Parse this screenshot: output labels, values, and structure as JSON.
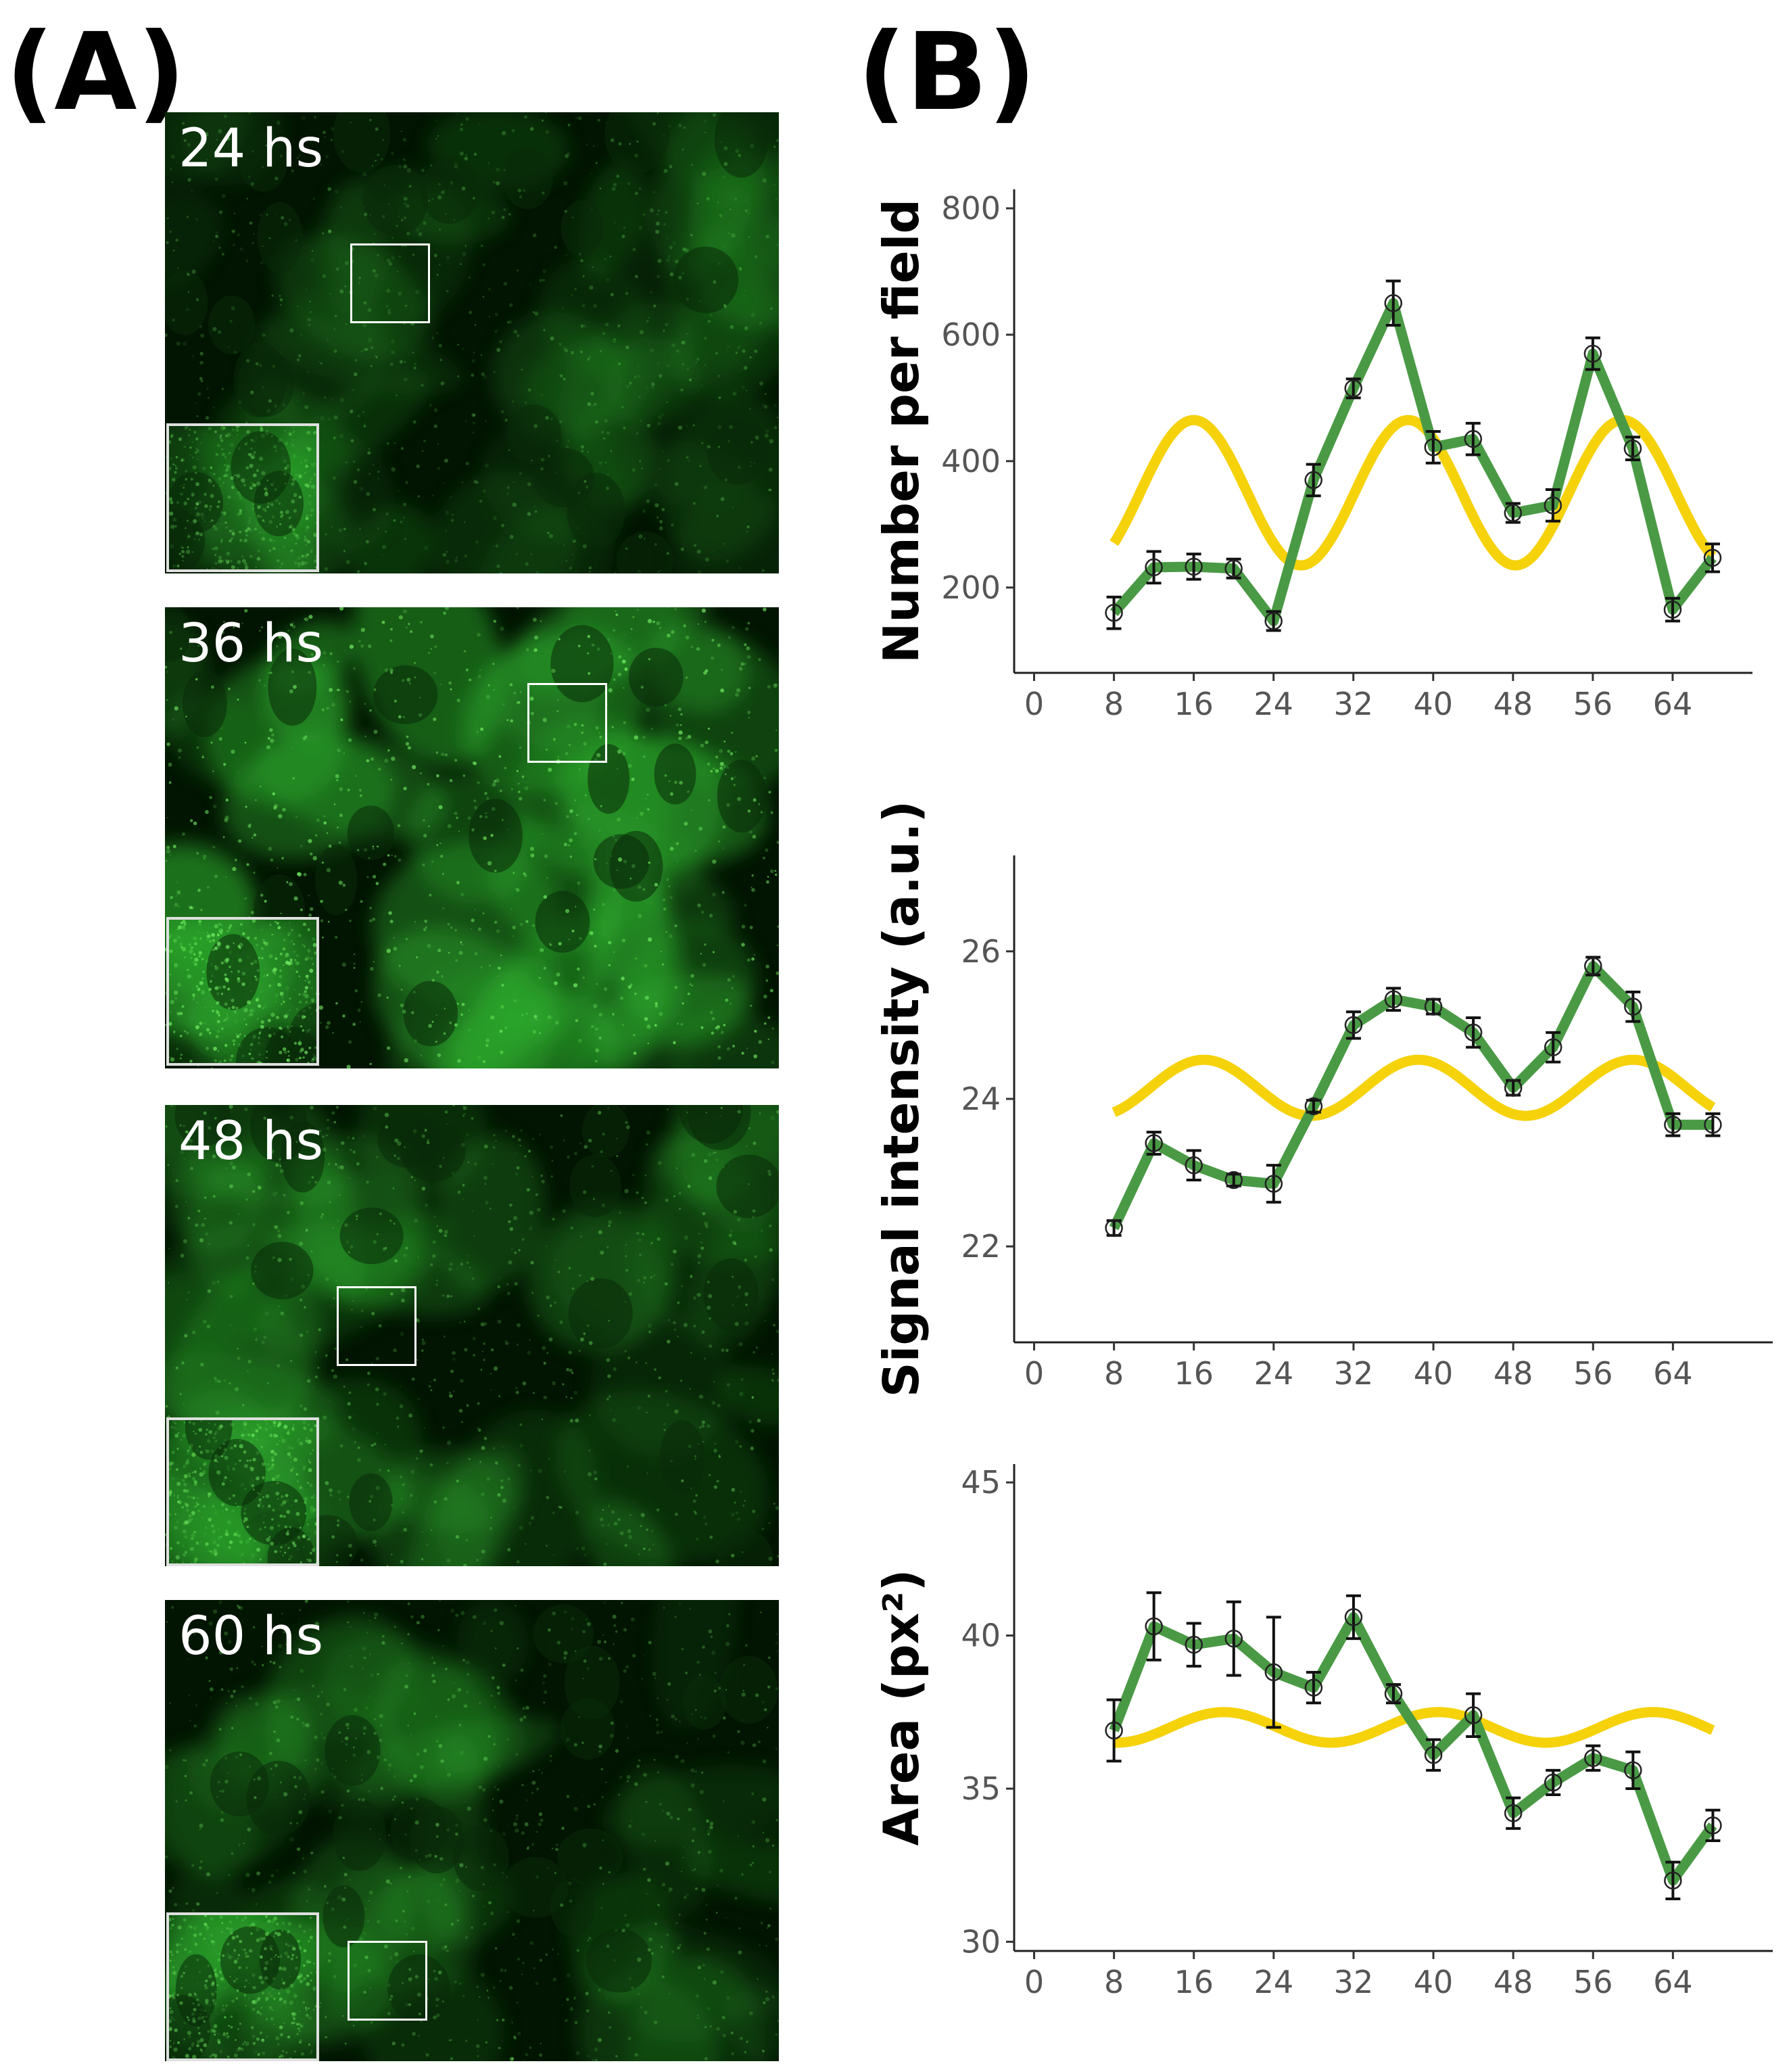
{
  "panels": {
    "a_label": "(A)",
    "b_label": "(B)"
  },
  "micrographs": [
    {
      "label": "24 hs",
      "brightness": 0.45
    },
    {
      "label": "36 hs",
      "brightness": 1.0
    },
    {
      "label": "48 hs",
      "brightness": 0.6
    },
    {
      "label": "60 hs",
      "brightness": 0.55
    }
  ],
  "colors": {
    "observed": "#4a9a45",
    "fit": "#f5d20a",
    "errorbar": "#111111",
    "cell": "#2fae2f"
  },
  "chart_data": [
    {
      "type": "line",
      "ylabel": "Number per field",
      "xticks": [
        0,
        8,
        16,
        24,
        32,
        40,
        48,
        56,
        64
      ],
      "xlim": [
        -2,
        72
      ],
      "yticks": [
        200,
        400,
        600,
        800
      ],
      "ylim": [
        65,
        830
      ],
      "x": [
        8,
        12,
        16,
        20,
        24,
        28,
        32,
        36,
        40,
        44,
        48,
        52,
        56,
        60,
        64,
        68
      ],
      "series": [
        {
          "name": "observed",
          "values": [
            160,
            232,
            233,
            230,
            147,
            370,
            515,
            650,
            422,
            435,
            318,
            330,
            570,
            420,
            165,
            247
          ],
          "errors": [
            25,
            25,
            20,
            15,
            15,
            25,
            15,
            35,
            25,
            25,
            15,
            25,
            25,
            18,
            18,
            22
          ]
        },
        {
          "name": "cosinor fit",
          "mesor": 350,
          "amplitude": 115,
          "period": 21.5,
          "acrophase": 16,
          "x_start": 8,
          "x_end": 68
        }
      ]
    },
    {
      "type": "line",
      "ylabel": "Signal intensity (a.u.)",
      "xticks": [
        0,
        8,
        16,
        24,
        32,
        40,
        48,
        56,
        64
      ],
      "xlim": [
        -2,
        74
      ],
      "yticks": [
        22,
        24,
        26
      ],
      "ylim": [
        20.7,
        27.3
      ],
      "x": [
        8,
        12,
        16,
        20,
        24,
        28,
        32,
        36,
        40,
        44,
        48,
        52,
        56,
        60,
        64,
        68
      ],
      "series": [
        {
          "name": "observed",
          "values": [
            22.25,
            23.4,
            23.1,
            22.9,
            22.85,
            23.9,
            25.0,
            25.35,
            25.25,
            24.9,
            24.15,
            24.7,
            25.8,
            25.25,
            23.65,
            23.65
          ],
          "errors": [
            0.1,
            0.15,
            0.2,
            0.08,
            0.25,
            0.08,
            0.18,
            0.15,
            0.1,
            0.2,
            0.1,
            0.2,
            0.12,
            0.2,
            0.15,
            0.15
          ]
        },
        {
          "name": "cosinor fit",
          "mesor": 24.15,
          "amplitude": 0.38,
          "period": 21.5,
          "acrophase": 17,
          "x_start": 8,
          "x_end": 68
        }
      ]
    },
    {
      "type": "line",
      "ylabel": "Area (px²)",
      "xticks": [
        0,
        8,
        16,
        24,
        32,
        40,
        48,
        56,
        64
      ],
      "xlim": [
        -2,
        74
      ],
      "yticks": [
        30,
        35,
        40,
        45
      ],
      "ylim": [
        29.7,
        45.6
      ],
      "x": [
        8,
        12,
        16,
        20,
        24,
        28,
        32,
        36,
        40,
        44,
        48,
        52,
        56,
        60,
        64,
        68
      ],
      "series": [
        {
          "name": "observed",
          "values": [
            36.9,
            40.3,
            39.7,
            39.9,
            38.8,
            38.3,
            40.6,
            38.1,
            36.1,
            37.4,
            34.2,
            35.2,
            36.0,
            35.6,
            32.0,
            33.8
          ],
          "errors": [
            1.0,
            1.1,
            0.7,
            1.2,
            1.8,
            0.5,
            0.7,
            0.3,
            0.5,
            0.7,
            0.5,
            0.4,
            0.4,
            0.6,
            0.6,
            0.5
          ]
        },
        {
          "name": "cosinor fit",
          "mesor": 37.0,
          "amplitude": 0.5,
          "period": 21.5,
          "acrophase": 19,
          "x_start": 8,
          "x_end": 68
        }
      ]
    }
  ]
}
